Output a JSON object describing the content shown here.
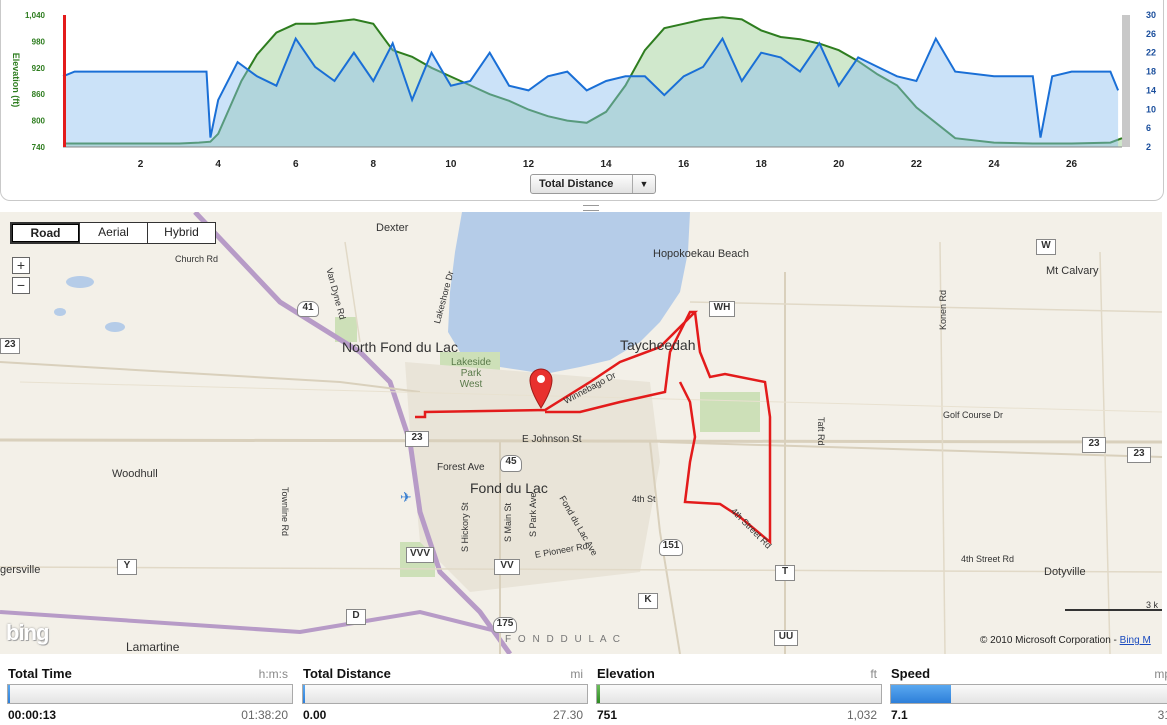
{
  "chart_data": {
    "type": "area",
    "xlabel": "",
    "ylabel": "Elevation (ft)",
    "x_ticks": [
      "2",
      "4",
      "6",
      "8",
      "10",
      "12",
      "14",
      "16",
      "18",
      "20",
      "22",
      "24",
      "26"
    ],
    "y_left_ticks": [
      "1,040",
      "980",
      "920",
      "860",
      "800",
      "740"
    ],
    "y_right_ticks": [
      "30",
      "26",
      "22",
      "18",
      "14",
      "10",
      "6",
      "2"
    ],
    "xlim": [
      0,
      27.3
    ],
    "ylim_left": [
      740,
      1040
    ],
    "ylim_right": [
      2,
      30
    ],
    "series": [
      {
        "name": "Elevation",
        "axis": "left",
        "color": "#2e7d1f",
        "x": [
          0,
          3,
          3.5,
          3.8,
          4,
          4.3,
          4.6,
          5,
          5.5,
          6,
          6.5,
          7,
          7.5,
          8,
          8.5,
          9,
          9.5,
          10,
          10.5,
          11,
          11.5,
          12,
          12.5,
          13,
          13.5,
          14,
          14.5,
          15,
          15.5,
          16,
          16.5,
          17,
          17.5,
          18,
          18.5,
          19,
          19.5,
          20,
          20.5,
          21,
          21.5,
          22,
          23,
          24,
          25,
          26,
          27,
          27.3
        ],
        "y": [
          748,
          748,
          750,
          752,
          770,
          830,
          890,
          950,
          1000,
          1020,
          1020,
          1025,
          1030,
          1020,
          960,
          945,
          920,
          900,
          880,
          860,
          845,
          825,
          810,
          800,
          795,
          820,
          880,
          960,
          1010,
          1020,
          1030,
          1035,
          1030,
          1005,
          990,
          985,
          975,
          960,
          935,
          905,
          880,
          830,
          760,
          750,
          748,
          748,
          750,
          760
        ]
      },
      {
        "name": "Speed",
        "axis": "right",
        "color": "#1a6fd6",
        "x": [
          0,
          0.3,
          1,
          2,
          3,
          3.7,
          3.8,
          4,
          4.5,
          5,
          5.5,
          6,
          6.5,
          7,
          7.5,
          8,
          8.5,
          9,
          9.5,
          10,
          10.5,
          11,
          11.5,
          12,
          12.5,
          13,
          13.5,
          14,
          14.5,
          15,
          15.5,
          16,
          16.5,
          17,
          17.5,
          18,
          18.5,
          19,
          19.5,
          20,
          20.5,
          21,
          21.5,
          22,
          22.5,
          23,
          24,
          25,
          25.2,
          25.5,
          26,
          27,
          27.2
        ],
        "y": [
          17,
          18,
          18,
          18,
          18,
          18,
          4,
          12,
          20,
          17,
          15,
          25,
          19,
          16,
          22,
          16,
          24,
          12,
          22,
          15,
          16,
          22,
          15,
          14,
          17,
          18,
          14,
          16,
          17,
          17,
          13,
          17,
          19,
          25,
          16,
          22,
          21,
          18,
          24,
          15,
          21,
          19,
          17,
          16,
          25,
          18,
          17,
          17,
          4,
          17,
          18,
          18,
          14
        ]
      }
    ]
  },
  "axis_selector": {
    "label": "Total Distance"
  },
  "map": {
    "type_buttons": [
      "Road",
      "Aerial",
      "Hybrid"
    ],
    "active_type": "Road",
    "zoom_in": "+",
    "zoom_out": "−",
    "labels": {
      "dexter": "Dexter",
      "church_rd": "Church Rd",
      "van_dyne": "Van Dyne Rd",
      "lakeshore": "Lakeshore Dr",
      "hopokoekau": "Hopokoekau Beach",
      "mt_calvary": "Mt Calvary",
      "konen": "Konen Rd",
      "north_fdl": "North Fond du Lac",
      "lakeside": "Lakeside\nPark\nWest",
      "taycheedah": "Taycheedah",
      "winnebago": "Winnebago Dr",
      "golf_course": "Golf Course Dr",
      "taft": "Taft Rd",
      "johnson": "E Johnson St",
      "woodhull": "Woodhull",
      "forest_ave": "Forest Ave",
      "fdl": "Fond du Lac",
      "fdl_ave": "Fond du Lac Ave",
      "fourth_st": "4th St",
      "fourth_street_rd": "4th Street Rd",
      "fourth_street_rd2": "4th Street Rd",
      "townline": "Townline Rd",
      "hickory": "S Hickory St",
      "main": "S Main St",
      "park": "S Park Ave",
      "pioneer": "E Pioneer Rd",
      "dotyville": "Dotyville",
      "rogersville": "gersville",
      "lamartine": "Lamartine",
      "county": "F O N D   D U   L A C",
      "scale": "3 k"
    },
    "shields": {
      "s41": "41",
      "s23a": "23",
      "s23b": "23",
      "s23c": "23",
      "s23d": "23",
      "s45": "45",
      "s151": "151",
      "s175": "175",
      "W": "W",
      "WH": "WH",
      "VVV": "VVV",
      "VV": "VV",
      "Y": "Y",
      "D": "D",
      "K": "K",
      "T": "T",
      "UU": "UU"
    },
    "logo": "bing",
    "copyright": "© 2010 Microsoft Corporation -",
    "copyright_link": "Bing M"
  },
  "stats": [
    {
      "name": "Total Time",
      "unit": "h:m:s",
      "value": "00:00:13",
      "max": "01:38:20",
      "fraction": 0.002
    },
    {
      "name": "Total Distance",
      "unit": "mi",
      "value": "0.00",
      "max": "27.30",
      "fraction": 0.0
    },
    {
      "name": "Elevation",
      "unit": "ft",
      "value": "751",
      "max": "1,032",
      "fraction": 0.01
    },
    {
      "name": "Speed",
      "unit": "mp",
      "value": "7.1",
      "max": "31",
      "fraction": 0.21
    }
  ],
  "colors": {
    "elevation": "#2e7d1f",
    "speed": "#1a6fd6",
    "route": "#e31b1b",
    "lake": "#b5cce8",
    "marker": "#e8312e"
  }
}
